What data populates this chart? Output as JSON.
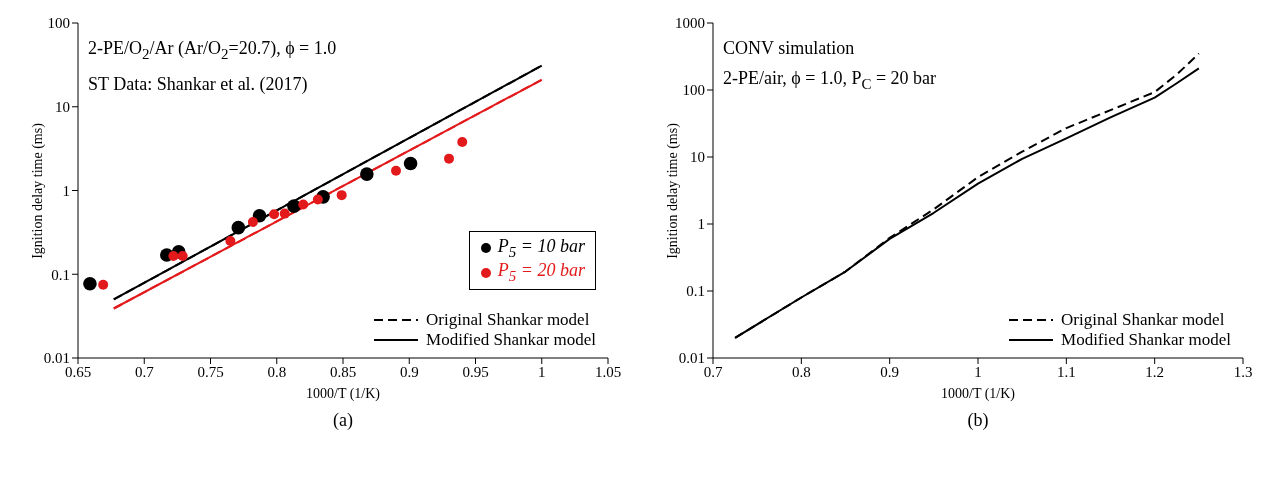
{
  "chart_data": [
    {
      "type": "scatter",
      "title": "(a)",
      "xlabel": "1000/T (1/K)",
      "ylabel": "Ignition delay time (ms)",
      "xlim": [
        0.65,
        1.05
      ],
      "xticks": [
        0.65,
        0.7,
        0.75,
        0.8,
        0.85,
        0.9,
        0.95,
        1,
        1.05
      ],
      "ylim": [
        0.01,
        100
      ],
      "yticks": [
        0.01,
        0.1,
        1,
        10,
        100
      ],
      "log": "y",
      "legend": "bottom right",
      "annotations": [
        "2-PE/O$_{2}$/Ar (Ar/O$_{2}$=20.7), ϕ = 1.0",
        "ST Data: Shankar et al. (2017)"
      ],
      "series": [
        {
          "name": "P$_{5}$ = 10 bar",
          "marker": "circle",
          "color": "#000000",
          "x": [
            0.659,
            0.717,
            0.726,
            0.771,
            0.787,
            0.813,
            0.835,
            0.868,
            0.901
          ],
          "values": [
            0.077,
            0.17,
            0.185,
            0.36,
            0.5,
            0.65,
            0.84,
            1.57,
            2.1
          ]
        },
        {
          "name": "P$_{5}$ = 20 bar",
          "marker": "circle",
          "color": "#e31a1c",
          "x": [
            0.669,
            0.722,
            0.729,
            0.765,
            0.782,
            0.798,
            0.806,
            0.82,
            0.831,
            0.849,
            0.89,
            0.93,
            0.94
          ],
          "values": [
            0.075,
            0.165,
            0.165,
            0.25,
            0.42,
            0.52,
            0.53,
            0.68,
            0.78,
            0.88,
            1.72,
            2.4,
            3.8
          ]
        },
        {
          "name": "Original Shankar model",
          "type": "line",
          "line_style": "dashed",
          "color": "#000000",
          "x": [
            0.677,
            1.0
          ],
          "values": [
            0.05,
            31
          ]
        },
        {
          "name": "Modified Shankar model",
          "type": "line",
          "line_style": "solid",
          "color": "#000000",
          "x": [
            0.677,
            1.0
          ],
          "values": [
            0.05,
            31
          ]
        },
        {
          "type": "line",
          "line_style": "dashed",
          "color": "#e31a1c",
          "x": [
            0.677,
            1.0
          ],
          "values": [
            0.039,
            21
          ]
        },
        {
          "type": "line",
          "line_style": "solid",
          "color": "#e31a1c",
          "x": [
            0.677,
            1.0
          ],
          "values": [
            0.039,
            21
          ]
        }
      ]
    },
    {
      "type": "line",
      "title": "(b)",
      "xlabel": "1000/T (1/K)",
      "ylabel": "Ignition delay time (ms)",
      "xlim": [
        0.7,
        1.3
      ],
      "xticks": [
        0.7,
        0.8,
        0.9,
        1,
        1.1,
        1.2,
        1.3
      ],
      "ylim": [
        0.01,
        1000
      ],
      "yticks": [
        0.01,
        0.1,
        1,
        10,
        100,
        1000
      ],
      "log": "y",
      "legend": "bottom right",
      "annotations": [
        "CONV simulation",
        "2-PE/air, ϕ = 1.0, P$_{C}$ = 20 bar"
      ],
      "series": [
        {
          "name": "Original Shankar model",
          "line_style": "dashed",
          "color": "#000000",
          "x": [
            0.725,
            0.8,
            0.85,
            0.9,
            0.95,
            1.0,
            1.05,
            1.1,
            1.15,
            1.2,
            1.225,
            1.25
          ],
          "values": [
            0.02,
            0.08,
            0.195,
            0.62,
            1.66,
            5.0,
            12,
            27,
            50,
            93,
            170,
            350
          ]
        },
        {
          "name": "Modified Shankar model",
          "line_style": "solid",
          "color": "#000000",
          "x": [
            0.725,
            0.8,
            0.85,
            0.9,
            0.95,
            1.0,
            1.05,
            1.1,
            1.15,
            1.2,
            1.225,
            1.25
          ],
          "values": [
            0.02,
            0.08,
            0.195,
            0.6,
            1.47,
            4.0,
            9.4,
            19,
            39,
            77,
            126,
            210
          ]
        }
      ]
    }
  ]
}
